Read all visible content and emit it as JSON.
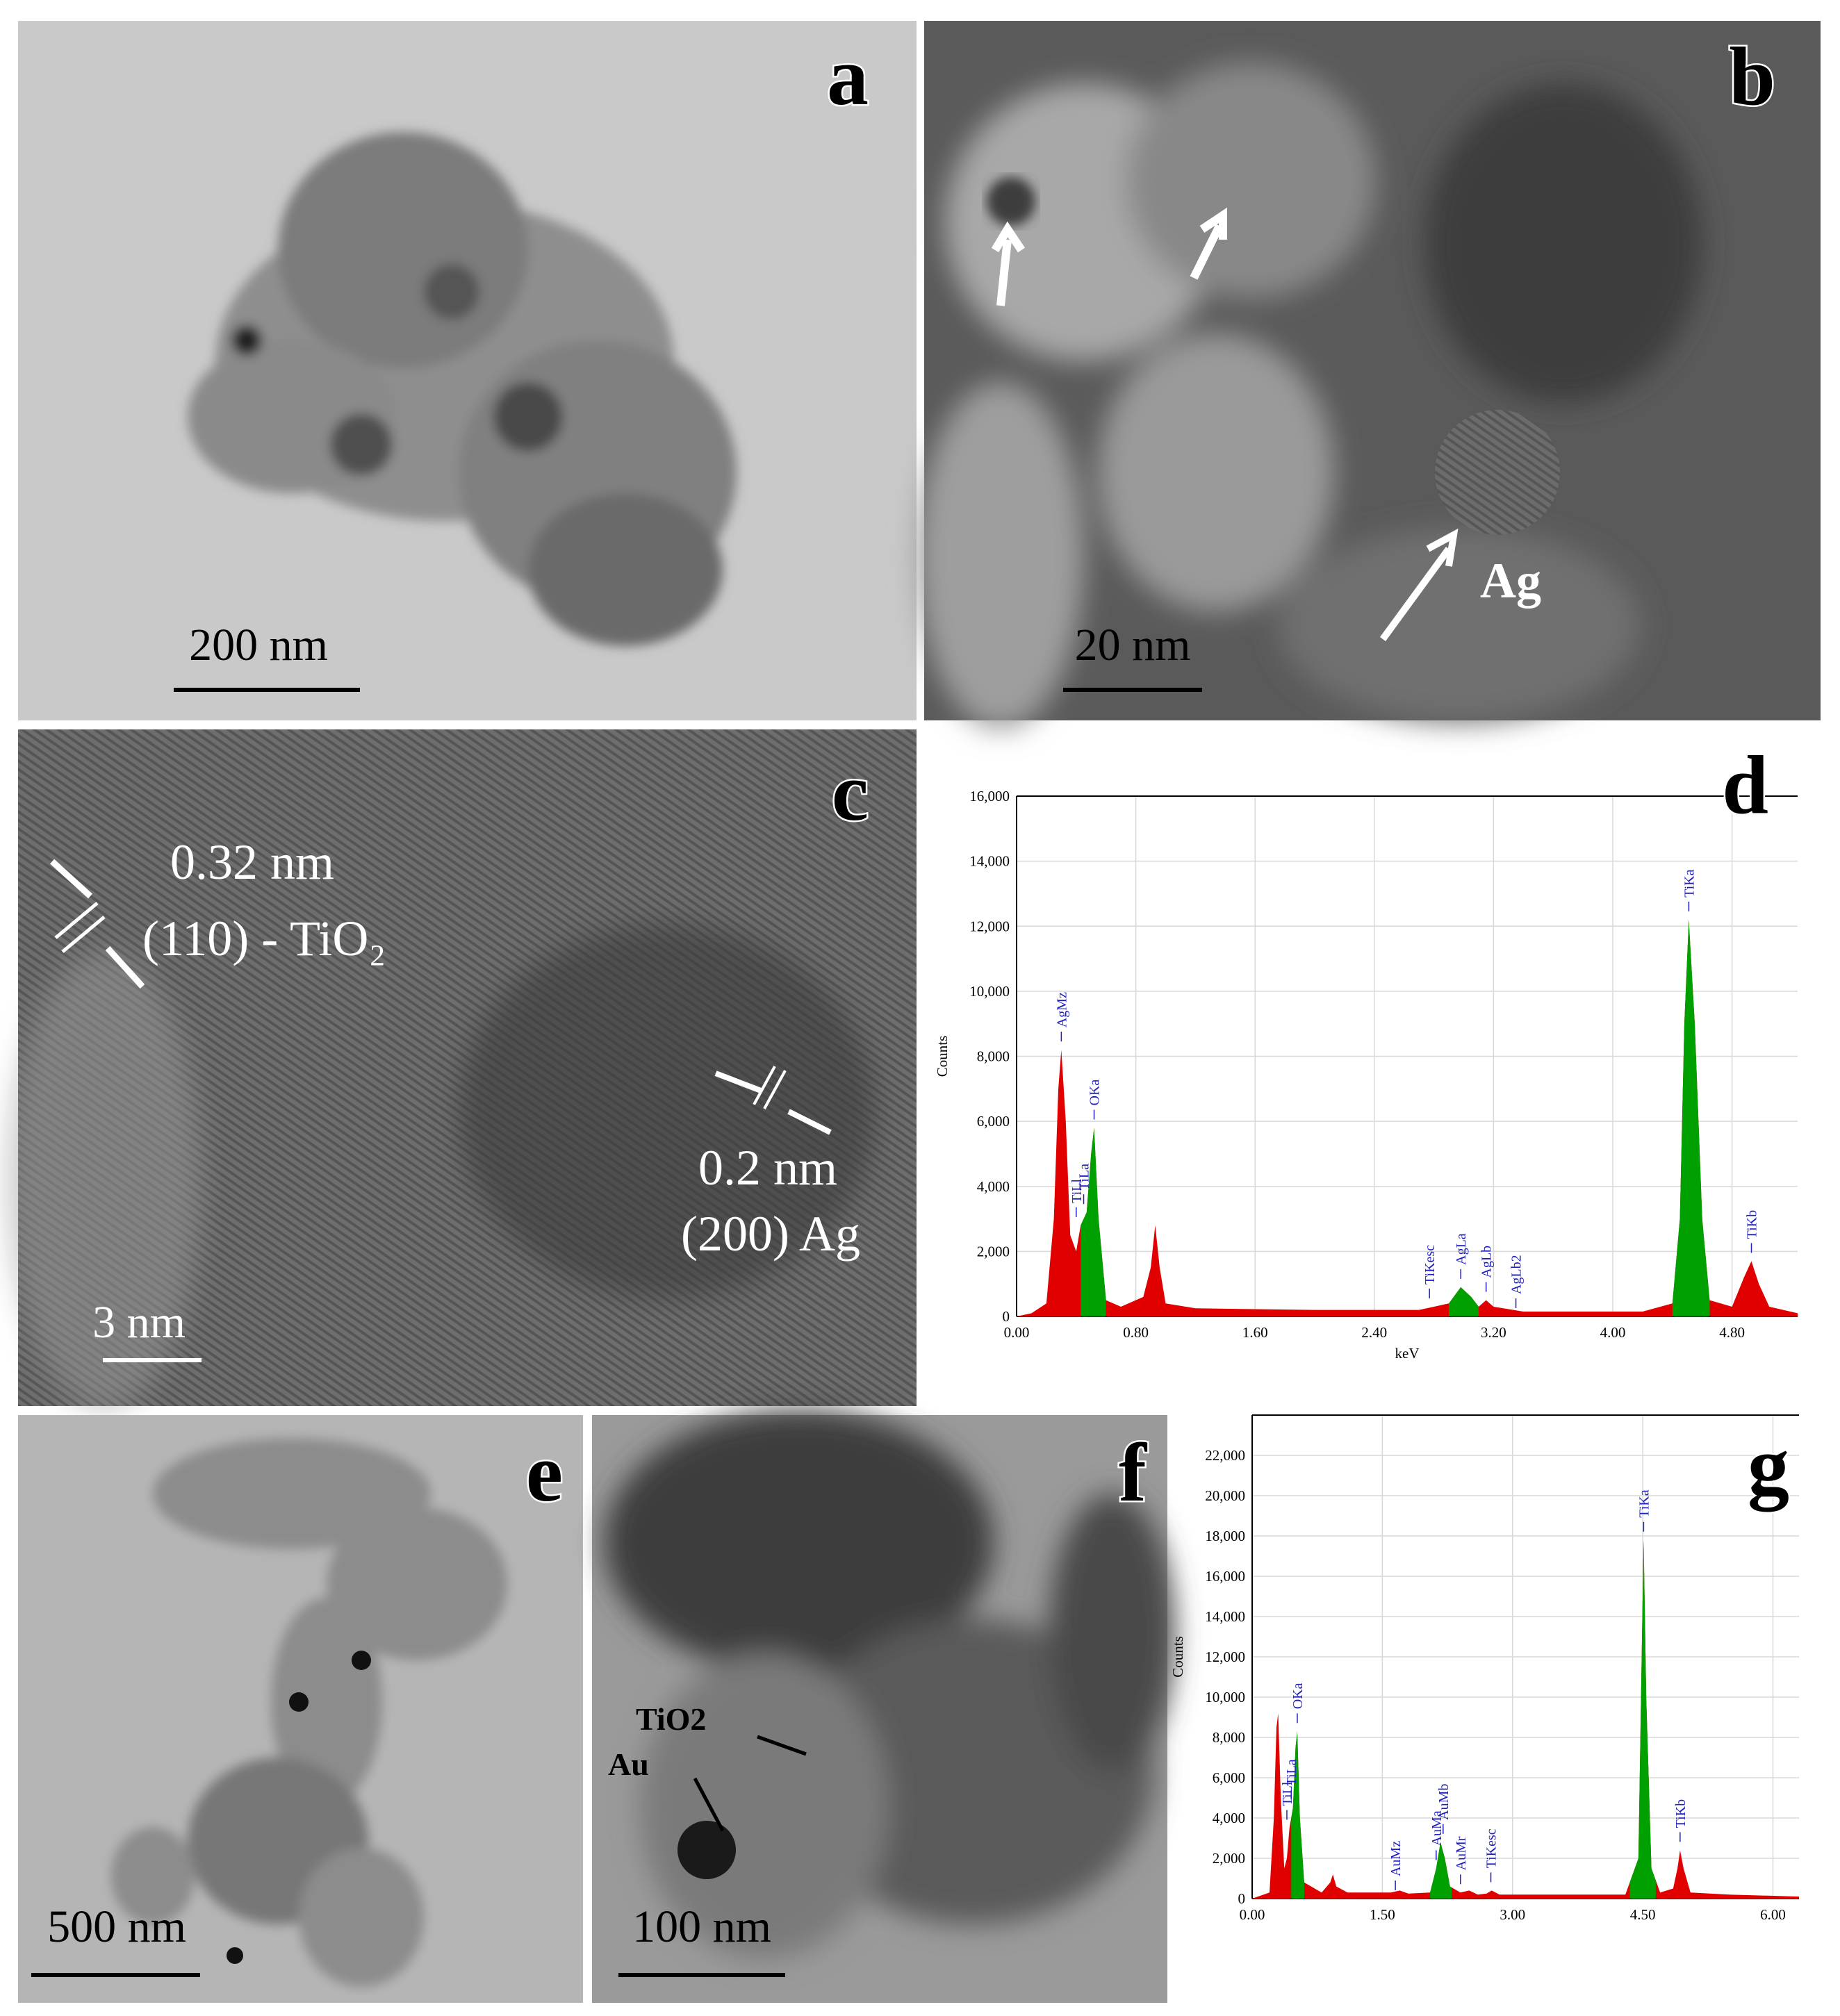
{
  "panels": [
    {
      "label": "a",
      "scale_bar": "200 nm"
    },
    {
      "label": "b",
      "scale_bar": "20 nm",
      "annotations": [
        "Ag"
      ]
    },
    {
      "label": "c",
      "scale_bar": "3 nm",
      "annotations": [
        "0.32 nm",
        "(110) - TiO₂",
        "0.2 nm",
        "(200) Ag"
      ]
    },
    {
      "label": "d"
    },
    {
      "label": "e",
      "scale_bar": "500 nm"
    },
    {
      "label": "f",
      "scale_bar": "100 nm",
      "annotations": [
        "TiO2",
        "Au"
      ]
    },
    {
      "label": "g"
    }
  ],
  "chart_data": [
    {
      "type": "area",
      "ylabel": "Counts",
      "xlabel": "keV",
      "color": "#e00000",
      "highlight_color": "#00a000",
      "x": [
        0,
        0.1,
        0.2,
        0.25,
        0.28,
        0.3,
        0.33,
        0.36,
        0.4,
        0.43,
        0.47,
        0.5,
        0.52,
        0.55,
        0.6,
        0.7,
        0.85,
        0.9,
        0.93,
        0.96,
        1.0,
        1.2,
        2.0,
        2.7,
        2.8,
        2.9,
        2.98,
        3.05,
        3.1,
        3.15,
        3.2,
        3.4,
        4.2,
        4.4,
        4.45,
        4.48,
        4.51,
        4.55,
        4.6,
        4.65,
        4.8,
        4.88,
        4.93,
        4.98,
        5.05,
        5.24
      ],
      "values": [
        0,
        100,
        400,
        3000,
        7000,
        8200,
        6000,
        2500,
        2000,
        2800,
        3200,
        5000,
        5800,
        3000,
        500,
        300,
        600,
        1500,
        2800,
        1500,
        400,
        250,
        200,
        200,
        300,
        400,
        900,
        600,
        300,
        500,
        300,
        150,
        150,
        400,
        3000,
        9000,
        12200,
        9000,
        3000,
        500,
        300,
        1200,
        1700,
        1000,
        300,
        100
      ],
      "highlights": [
        [
          0.43,
          0.6
        ],
        [
          2.9,
          3.1
        ],
        [
          4.4,
          4.65
        ]
      ],
      "peak_labels": [
        {
          "label": "AgMz",
          "x": 0.3
        },
        {
          "label": "TiLl",
          "x": 0.4
        },
        {
          "label": "TiLa",
          "x": 0.45
        },
        {
          "label": "OKa",
          "x": 0.52
        },
        {
          "label": "TiKesc",
          "x": 2.77
        },
        {
          "label": "AgLa",
          "x": 2.98
        },
        {
          "label": "AgLb",
          "x": 3.15
        },
        {
          "label": "AgLb2",
          "x": 3.35
        },
        {
          "label": "TiKa",
          "x": 4.51
        },
        {
          "label": "TiKb",
          "x": 4.93
        }
      ],
      "xlim": [
        0,
        5.24
      ],
      "ylim": [
        0,
        16000
      ],
      "xticks": [
        {
          "value": 0,
          "label": "0.00"
        },
        {
          "value": 0.8,
          "label": "0.80"
        },
        {
          "value": 1.6,
          "label": "1.60"
        },
        {
          "value": 2.4,
          "label": "2.40"
        },
        {
          "value": 3.2,
          "label": "3.20"
        },
        {
          "value": 4.0,
          "label": "4.00"
        },
        {
          "value": 4.8,
          "label": "4.80"
        }
      ],
      "yticks": [
        0,
        {
          "value": 2000,
          "label": "2,000"
        },
        {
          "value": 4000,
          "label": "4,000"
        },
        {
          "value": 6000,
          "label": "6,000"
        },
        {
          "value": 8000,
          "label": "8,000"
        },
        {
          "value": 10000,
          "label": "10,000"
        },
        {
          "value": 12000,
          "label": "12,000"
        },
        {
          "value": 14000,
          "label": "14,000"
        },
        {
          "value": 16000,
          "label": "16,000"
        }
      ],
      "grid": true
    },
    {
      "type": "area",
      "ylabel": "Counts",
      "color": "#e00000",
      "highlight_color": "#00a000",
      "x": [
        0,
        0.2,
        0.25,
        0.28,
        0.3,
        0.33,
        0.37,
        0.4,
        0.43,
        0.47,
        0.5,
        0.52,
        0.55,
        0.6,
        0.8,
        0.9,
        0.93,
        0.97,
        1.1,
        1.6,
        1.7,
        1.8,
        2.05,
        2.12,
        2.17,
        2.22,
        2.28,
        2.4,
        2.5,
        2.6,
        2.7,
        2.76,
        2.85,
        4.3,
        4.45,
        4.48,
        4.51,
        4.54,
        4.6,
        4.7,
        4.85,
        4.9,
        4.93,
        4.97,
        5.05,
        5.5,
        6.3
      ],
      "values": [
        0,
        300,
        4000,
        8500,
        9200,
        5000,
        1500,
        2000,
        3500,
        4500,
        7500,
        8300,
        4000,
        800,
        300,
        800,
        1200,
        600,
        300,
        300,
        400,
        250,
        300,
        1500,
        2800,
        2000,
        600,
        300,
        400,
        200,
        250,
        400,
        200,
        200,
        2000,
        10000,
        17800,
        10000,
        1500,
        300,
        500,
        1500,
        2400,
        1500,
        300,
        200,
        100
      ],
      "highlights": [
        [
          0.45,
          0.6
        ],
        [
          2.05,
          2.3
        ],
        [
          4.35,
          4.65
        ]
      ],
      "peak_labels": [
        {
          "label": "TiLl",
          "x": 0.4
        },
        {
          "label": "TiLa",
          "x": 0.45
        },
        {
          "label": "OKa",
          "x": 0.52
        },
        {
          "label": "AuMz",
          "x": 1.65
        },
        {
          "label": "AuMa",
          "x": 2.12
        },
        {
          "label": "AuMb",
          "x": 2.2
        },
        {
          "label": "AuMr",
          "x": 2.4
        },
        {
          "label": "TiKesc",
          "x": 2.75
        },
        {
          "label": "TiKa",
          "x": 4.51
        },
        {
          "label": "TiKb",
          "x": 4.93
        }
      ],
      "xlim": [
        0,
        6.3
      ],
      "ylim": [
        0,
        24000
      ],
      "xticks": [
        {
          "value": 0,
          "label": "0.00"
        },
        {
          "value": 1.5,
          "label": "1.50"
        },
        {
          "value": 3.0,
          "label": "3.00"
        },
        {
          "value": 4.5,
          "label": "4.50"
        },
        {
          "value": 6.0,
          "label": "6.00"
        }
      ],
      "yticks": [
        0,
        {
          "value": 2000,
          "label": "2,000"
        },
        {
          "value": 4000,
          "label": "4,000"
        },
        {
          "value": 6000,
          "label": "6,000"
        },
        {
          "value": 8000,
          "label": "8,000"
        },
        {
          "value": 10000,
          "label": "10,000"
        },
        {
          "value": 12000,
          "label": "12,000"
        },
        {
          "value": 14000,
          "label": "14,000"
        },
        {
          "value": 16000,
          "label": "16,000"
        },
        {
          "value": 18000,
          "label": "18,000"
        },
        {
          "value": 20000,
          "label": "20,000"
        },
        {
          "value": 22000,
          "label": "22,000"
        }
      ],
      "grid": true
    }
  ]
}
